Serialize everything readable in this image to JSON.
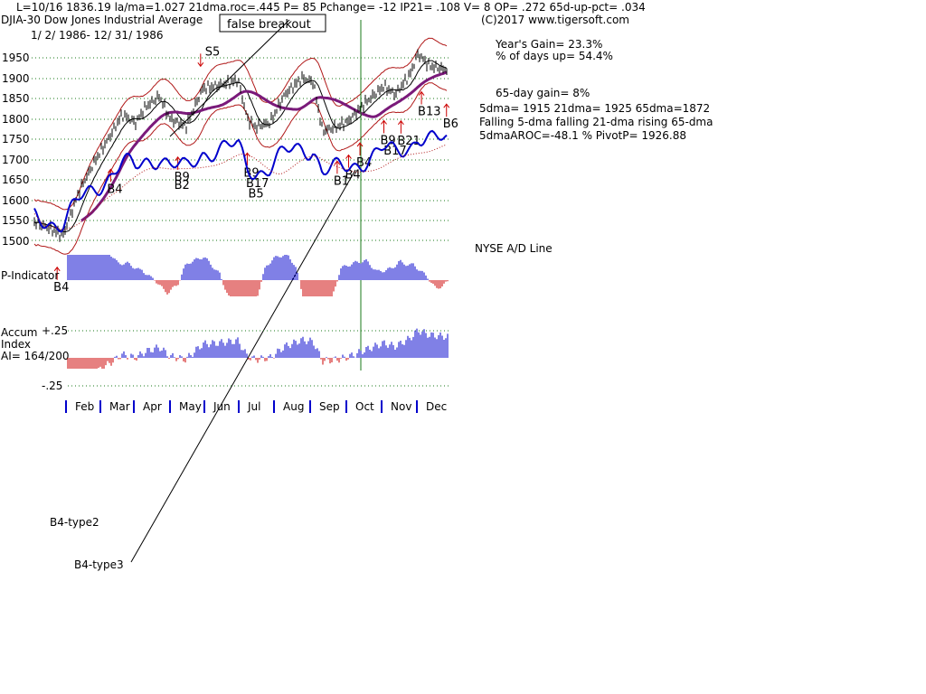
{
  "header": {
    "line1": "L=10/16  1836.19  la/ma=1.027 21dma.roc=.445 P=   85 Pchange= -12 IP21= .108 V= 8 OP= .272 65d-up-pct= .034",
    "copyright": "(C)2017 www.tigersoft.com",
    "title": "DJIA-30  Dow Jones Industrial Average",
    "date_range": "1/ 2/ 1986- 12/ 31/ 1986"
  },
  "stats": {
    "years_gain": "Year's Gain= 23.3%",
    "days_up": "% of days up= 54.4%",
    "gain65": "65-day gain= 8%",
    "dma_values": "5dma= 1915 21dma= 1925 65dma=1872",
    "dma_trend": "Falling 5-dma falling 21-dma rising 65-dma",
    "aroc": "5dmaAROC=-48.1 %  PivotP= 1926.88"
  },
  "annotations": {
    "false_breakout": "false breakout",
    "b4_type2": "B4-type2",
    "b4_type3": "B4-type3"
  },
  "panels": {
    "ad_line": "NYSE A/D Line",
    "p_indicator": "P-Indicator",
    "accum_line1": "Accum",
    "accum_line2": "Index",
    "accum_line3": "AI= 164/200",
    "accum_top": "+.25",
    "accum_bottom": "-.25"
  },
  "colors": {
    "bars": "#000000",
    "bands": "#b01818",
    "ma65": "#7a1a7a",
    "ad_line": "#0000cc",
    "signal_arrow": "#cc0000",
    "grid": "#1a7a1a",
    "positive_hist": "#0000cc",
    "negative_hist": "#cc0000",
    "vertical_marker": "#1a7a1a"
  },
  "chart_data": {
    "type": "line",
    "title": "DJIA-30  Dow Jones Industrial Average",
    "x_range": [
      "1986-01-02",
      "1986-12-31"
    ],
    "ylim": [
      1500,
      2000
    ],
    "y_ticks": [
      "1950",
      "1900",
      "1850",
      "1800",
      "1750",
      "1700",
      "1650",
      "1600",
      "1550",
      "1500"
    ],
    "month_ticks": [
      "Feb",
      "Mar",
      "Apr",
      "May",
      "Jun",
      "Jul",
      "Aug",
      "Sep",
      "Oct",
      "Nov",
      "Dec"
    ],
    "grid": true,
    "series": [
      {
        "name": "DJIA-30",
        "points": [
          [
            "1986-01-02",
            1545
          ],
          [
            "1986-01-15",
            1530
          ],
          [
            "1986-01-27",
            1510
          ],
          [
            "1986-02-10",
            1620
          ],
          [
            "1986-02-25",
            1700
          ],
          [
            "1986-03-10",
            1760
          ],
          [
            "1986-03-20",
            1810
          ],
          [
            "1986-04-01",
            1790
          ],
          [
            "1986-04-10",
            1830
          ],
          [
            "1986-04-22",
            1855
          ],
          [
            "1986-05-01",
            1800
          ],
          [
            "1986-05-15",
            1780
          ],
          [
            "1986-05-30",
            1875
          ],
          [
            "1986-06-10",
            1880
          ],
          [
            "1986-06-30",
            1895
          ],
          [
            "1986-07-08",
            1800
          ],
          [
            "1986-07-15",
            1780
          ],
          [
            "1986-07-28",
            1790
          ],
          [
            "1986-08-10",
            1860
          ],
          [
            "1986-08-25",
            1900
          ],
          [
            "1986-09-04",
            1890
          ],
          [
            "1986-09-12",
            1770
          ],
          [
            "1986-09-25",
            1780
          ],
          [
            "1986-10-05",
            1795
          ],
          [
            "1986-10-20",
            1840
          ],
          [
            "1986-11-05",
            1880
          ],
          [
            "1986-11-15",
            1860
          ],
          [
            "1986-11-28",
            1910
          ],
          [
            "1986-12-05",
            1960
          ],
          [
            "1986-12-15",
            1930
          ],
          [
            "1986-12-31",
            1920
          ]
        ]
      }
    ],
    "signals": [
      {
        "label": "S5",
        "date": "1986-05-28",
        "direction": "sell"
      },
      {
        "label": "B4",
        "date": "1986-01-22",
        "direction": "buy"
      },
      {
        "label": "B4",
        "date": "1986-03-10",
        "direction": "buy"
      },
      {
        "label": "B9",
        "date": "1986-05-08",
        "direction": "buy"
      },
      {
        "label": "B2",
        "date": "1986-05-08",
        "direction": "buy"
      },
      {
        "label": "B9",
        "date": "1986-07-08",
        "direction": "buy"
      },
      {
        "label": "B17",
        "date": "1986-07-10",
        "direction": "buy"
      },
      {
        "label": "B5",
        "date": "1986-07-12",
        "direction": "buy"
      },
      {
        "label": "B1",
        "date": "1986-09-25",
        "direction": "buy"
      },
      {
        "label": "B4",
        "date": "1986-10-05",
        "direction": "buy"
      },
      {
        "label": "B4",
        "date": "1986-10-15",
        "direction": "buy"
      },
      {
        "label": "B9",
        "date": "1986-11-05",
        "direction": "buy"
      },
      {
        "label": "B17",
        "date": "1986-11-08",
        "direction": "buy"
      },
      {
        "label": "B21",
        "date": "1986-11-20",
        "direction": "buy"
      },
      {
        "label": "B13",
        "date": "1986-12-08",
        "direction": "buy"
      },
      {
        "label": "B6",
        "date": "1986-12-30",
        "direction": "buy"
      }
    ]
  }
}
